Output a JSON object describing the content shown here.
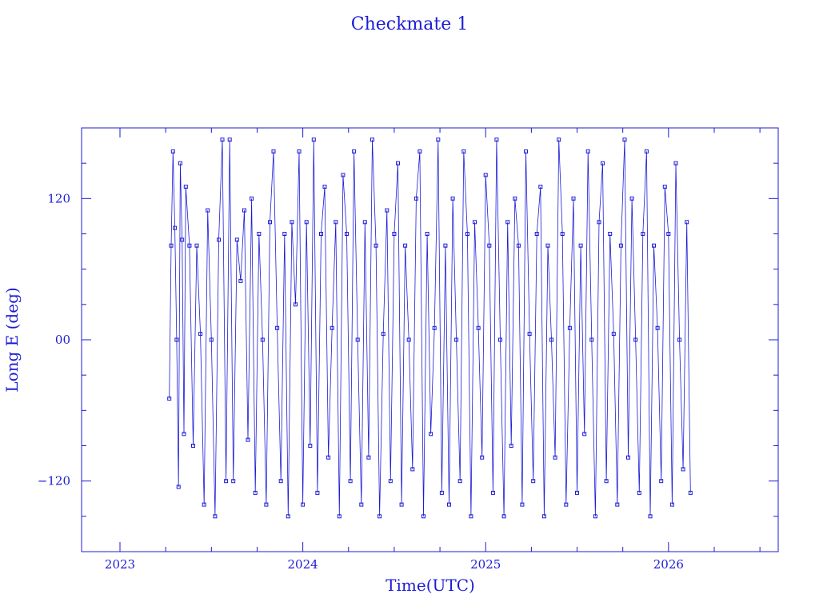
{
  "chart_data": {
    "type": "scatter",
    "title": "Checkmate 1",
    "xlabel": "Time(UTC)",
    "ylabel": "Long E (deg)",
    "xlim": [
      2022.79,
      2026.6
    ],
    "ylim": [
      -180,
      180
    ],
    "x_ticks": [
      2023,
      2024,
      2025,
      2026
    ],
    "x_tick_labels": [
      "2023",
      "2024",
      "2025",
      "2026"
    ],
    "y_ticks": [
      -120,
      0,
      120
    ],
    "y_tick_labels": [
      "−120",
      "00",
      "120"
    ],
    "grid": false,
    "series": [
      {
        "data_start": 2023.27,
        "data_end": 2026.12,
        "points": [
          [
            2023.27,
            -50
          ],
          [
            2023.28,
            80
          ],
          [
            2023.29,
            160
          ],
          [
            2023.3,
            95
          ],
          [
            2023.31,
            0
          ],
          [
            2023.32,
            -125
          ],
          [
            2023.33,
            150
          ],
          [
            2023.34,
            85
          ],
          [
            2023.35,
            -80
          ],
          [
            2023.36,
            130
          ],
          [
            2023.38,
            80
          ],
          [
            2023.4,
            -90
          ],
          [
            2023.42,
            80
          ],
          [
            2023.44,
            5
          ],
          [
            2023.46,
            -140
          ],
          [
            2023.48,
            110
          ],
          [
            2023.5,
            0
          ],
          [
            2023.52,
            -150
          ],
          [
            2023.54,
            85
          ],
          [
            2023.56,
            170
          ],
          [
            2023.58,
            -120
          ],
          [
            2023.6,
            170
          ],
          [
            2023.62,
            -120
          ],
          [
            2023.64,
            85
          ],
          [
            2023.66,
            50
          ],
          [
            2023.68,
            110
          ],
          [
            2023.7,
            -85
          ],
          [
            2023.72,
            120
          ],
          [
            2023.74,
            -130
          ],
          [
            2023.76,
            90
          ],
          [
            2023.78,
            0
          ],
          [
            2023.8,
            -140
          ],
          [
            2023.82,
            100
          ],
          [
            2023.84,
            160
          ],
          [
            2023.86,
            10
          ],
          [
            2023.88,
            -120
          ],
          [
            2023.9,
            90
          ],
          [
            2023.92,
            -150
          ],
          [
            2023.94,
            100
          ],
          [
            2023.96,
            30
          ],
          [
            2023.98,
            160
          ],
          [
            2024.0,
            -140
          ],
          [
            2024.02,
            100
          ],
          [
            2024.04,
            -90
          ],
          [
            2024.06,
            170
          ],
          [
            2024.08,
            -130
          ],
          [
            2024.1,
            90
          ],
          [
            2024.12,
            130
          ],
          [
            2024.14,
            -100
          ],
          [
            2024.16,
            10
          ],
          [
            2024.18,
            100
          ],
          [
            2024.2,
            -150
          ],
          [
            2024.22,
            140
          ],
          [
            2024.24,
            90
          ],
          [
            2024.26,
            -120
          ],
          [
            2024.28,
            160
          ],
          [
            2024.3,
            0
          ],
          [
            2024.32,
            -140
          ],
          [
            2024.34,
            100
          ],
          [
            2024.36,
            -100
          ],
          [
            2024.38,
            170
          ],
          [
            2024.4,
            80
          ],
          [
            2024.42,
            -150
          ],
          [
            2024.44,
            5
          ],
          [
            2024.46,
            110
          ],
          [
            2024.48,
            -120
          ],
          [
            2024.5,
            90
          ],
          [
            2024.52,
            150
          ],
          [
            2024.54,
            -140
          ],
          [
            2024.56,
            80
          ],
          [
            2024.58,
            0
          ],
          [
            2024.6,
            -110
          ],
          [
            2024.62,
            120
          ],
          [
            2024.64,
            160
          ],
          [
            2024.66,
            -150
          ],
          [
            2024.68,
            90
          ],
          [
            2024.7,
            -80
          ],
          [
            2024.72,
            10
          ],
          [
            2024.74,
            170
          ],
          [
            2024.76,
            -130
          ],
          [
            2024.78,
            80
          ],
          [
            2024.8,
            -140
          ],
          [
            2024.82,
            120
          ],
          [
            2024.84,
            0
          ],
          [
            2024.86,
            -120
          ],
          [
            2024.88,
            160
          ],
          [
            2024.9,
            90
          ],
          [
            2024.92,
            -150
          ],
          [
            2024.94,
            100
          ],
          [
            2024.96,
            10
          ],
          [
            2024.98,
            -100
          ],
          [
            2025.0,
            140
          ],
          [
            2025.02,
            80
          ],
          [
            2025.04,
            -130
          ],
          [
            2025.06,
            170
          ],
          [
            2025.08,
            0
          ],
          [
            2025.1,
            -150
          ],
          [
            2025.12,
            100
          ],
          [
            2025.14,
            -90
          ],
          [
            2025.16,
            120
          ],
          [
            2025.18,
            80
          ],
          [
            2025.2,
            -140
          ],
          [
            2025.22,
            160
          ],
          [
            2025.24,
            5
          ],
          [
            2025.26,
            -120
          ],
          [
            2025.28,
            90
          ],
          [
            2025.3,
            130
          ],
          [
            2025.32,
            -150
          ],
          [
            2025.34,
            80
          ],
          [
            2025.36,
            0
          ],
          [
            2025.38,
            -100
          ],
          [
            2025.4,
            170
          ],
          [
            2025.42,
            90
          ],
          [
            2025.44,
            -140
          ],
          [
            2025.46,
            10
          ],
          [
            2025.48,
            120
          ],
          [
            2025.5,
            -130
          ],
          [
            2025.52,
            80
          ],
          [
            2025.54,
            -80
          ],
          [
            2025.56,
            160
          ],
          [
            2025.58,
            0
          ],
          [
            2025.6,
            -150
          ],
          [
            2025.62,
            100
          ],
          [
            2025.64,
            150
          ],
          [
            2025.66,
            -120
          ],
          [
            2025.68,
            90
          ],
          [
            2025.7,
            5
          ],
          [
            2025.72,
            -140
          ],
          [
            2025.74,
            80
          ],
          [
            2025.76,
            170
          ],
          [
            2025.78,
            -100
          ],
          [
            2025.8,
            120
          ],
          [
            2025.82,
            0
          ],
          [
            2025.84,
            -130
          ],
          [
            2025.86,
            90
          ],
          [
            2025.88,
            160
          ],
          [
            2025.9,
            -150
          ],
          [
            2025.92,
            80
          ],
          [
            2025.94,
            10
          ],
          [
            2025.96,
            -120
          ],
          [
            2025.98,
            130
          ],
          [
            2026.0,
            90
          ],
          [
            2026.02,
            -140
          ],
          [
            2026.04,
            150
          ],
          [
            2026.06,
            0
          ],
          [
            2026.08,
            -110
          ],
          [
            2026.1,
            100
          ],
          [
            2026.12,
            -130
          ]
        ]
      }
    ]
  },
  "colors": {
    "primary": "#1c1cd6",
    "background": "#ffffff"
  }
}
